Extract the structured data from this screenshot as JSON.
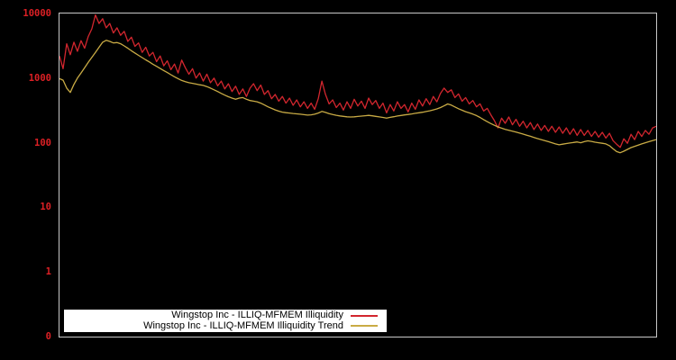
{
  "window": {
    "background": "#000000",
    "plot_border_color": "#c8c8c8"
  },
  "y_axis": {
    "color": "#dd2025",
    "tick_labels": [
      "10000",
      "1000",
      "100",
      "10",
      "1",
      "0"
    ]
  },
  "legend": {
    "background": "#ffffff",
    "entries": [
      {
        "label": "Wingstop Inc - ILLIQ-MFMEM Illiquidity",
        "color": "#d2262e"
      },
      {
        "label": "Wingstop Inc - ILLIQ-MFMEM Illiquidity Trend",
        "color": "#c9ab45"
      }
    ]
  },
  "chart_data": {
    "type": "line",
    "title": "",
    "xlabel": "",
    "ylabel": "",
    "y_scale": "log",
    "ylim": [
      0.1,
      10000
    ],
    "y_tick_labels": [
      "10000",
      "1000",
      "100",
      "10",
      "1",
      "0"
    ],
    "x_axis_labels": "none",
    "grid": false,
    "legend_position": "bottom-left",
    "background": "#000000",
    "series": [
      {
        "name": "Wingstop Inc - ILLIQ-MFMEM Illiquidity",
        "color": "#d2262e",
        "values": [
          2200,
          1400,
          3400,
          2300,
          3600,
          2600,
          3800,
          2900,
          4400,
          5800,
          9500,
          7000,
          8300,
          6000,
          7000,
          5000,
          6000,
          4600,
          5300,
          3700,
          4300,
          3100,
          3500,
          2500,
          3000,
          2200,
          2500,
          1800,
          2200,
          1550,
          1850,
          1350,
          1650,
          1200,
          1900,
          1450,
          1150,
          1400,
          1000,
          1200,
          900,
          1150,
          850,
          1000,
          760,
          900,
          680,
          820,
          620,
          750,
          560,
          680,
          520,
          700,
          820,
          640,
          780,
          560,
          640,
          480,
          560,
          440,
          520,
          410,
          490,
          380,
          460,
          360,
          430,
          340,
          410,
          330,
          480,
          900,
          560,
          400,
          460,
          350,
          410,
          320,
          430,
          340,
          470,
          370,
          440,
          340,
          490,
          390,
          450,
          340,
          410,
          290,
          390,
          310,
          430,
          340,
          390,
          300,
          410,
          330,
          460,
          370,
          480,
          390,
          520,
          430,
          580,
          700,
          600,
          660,
          500,
          570,
          440,
          500,
          400,
          450,
          360,
          400,
          310,
          340,
          270,
          220,
          170,
          240,
          200,
          250,
          190,
          230,
          180,
          215,
          170,
          205,
          160,
          195,
          155,
          185,
          150,
          180,
          145,
          175,
          140,
          170,
          135,
          165,
          130,
          160,
          130,
          155,
          125,
          150,
          122,
          145,
          118,
          140,
          108,
          95,
          85,
          115,
          98,
          135,
          112,
          150,
          125,
          155,
          135,
          170,
          180
        ]
      },
      {
        "name": "Wingstop Inc - ILLIQ-MFMEM Illiquidity Trend",
        "color": "#c9ab45",
        "values": [
          980,
          930,
          700,
          600,
          800,
          1000,
          1200,
          1450,
          1750,
          2100,
          2500,
          3000,
          3600,
          3850,
          3700,
          3500,
          3550,
          3400,
          3150,
          2900,
          2650,
          2450,
          2250,
          2080,
          1920,
          1780,
          1640,
          1520,
          1410,
          1310,
          1220,
          1130,
          1050,
          980,
          920,
          880,
          850,
          830,
          810,
          790,
          770,
          740,
          700,
          660,
          620,
          580,
          545,
          515,
          490,
          470,
          490,
          500,
          470,
          450,
          440,
          430,
          410,
          385,
          360,
          340,
          322,
          308,
          298,
          292,
          288,
          284,
          280,
          276,
          272,
          268,
          270,
          276,
          288,
          305,
          295,
          283,
          274,
          266,
          260,
          256,
          252,
          250,
          252,
          255,
          258,
          262,
          265,
          261,
          256,
          251,
          246,
          240,
          247,
          253,
          259,
          264,
          269,
          274,
          279,
          285,
          291,
          297,
          304,
          312,
          322,
          334,
          350,
          372,
          398,
          382,
          358,
          336,
          318,
          302,
          290,
          277,
          263,
          246,
          228,
          212,
          198,
          186,
          176,
          168,
          161,
          156,
          151,
          146,
          141,
          136,
          131,
          126,
          121,
          116,
          112,
          108,
          104,
          100,
          96,
          93,
          95,
          97,
          99,
          101,
          103,
          100,
          104,
          107,
          105,
          102,
          100,
          98,
          96,
          90,
          81,
          73,
          70,
          74,
          79,
          84,
          88,
          92,
          96,
          100,
          104,
          108,
          112
        ]
      }
    ]
  }
}
